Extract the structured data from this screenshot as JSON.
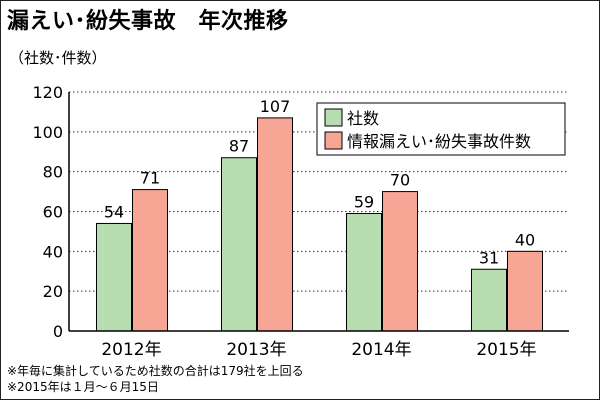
{
  "header": {
    "title": "漏えい･紛失事故　年次推移",
    "unit": "（社数･件数）"
  },
  "notes": [
    "※年毎に集計しているため社数の合計は179社を上回る",
    "※2015年は１月～６月15日"
  ],
  "colors": {
    "series1": "#b7ddb0",
    "series2": "#f7a695",
    "border": "#000000"
  },
  "chart_data": {
    "type": "bar",
    "title": "漏えい･紛失事故　年次推移",
    "ylabel": "（社数･件数）",
    "xlabel": "",
    "categories": [
      "2012年",
      "2013年",
      "2014年",
      "2015年"
    ],
    "series": [
      {
        "name": "社数",
        "values": [
          54,
          87,
          59,
          31
        ]
      },
      {
        "name": "情報漏えい･紛失事故件数",
        "values": [
          71,
          107,
          70,
          40
        ]
      }
    ],
    "ylim": [
      0,
      120
    ],
    "yticks": [
      0,
      20,
      40,
      60,
      80,
      100,
      120
    ],
    "grid": true,
    "legend": "top-right",
    "data_labels": true
  }
}
